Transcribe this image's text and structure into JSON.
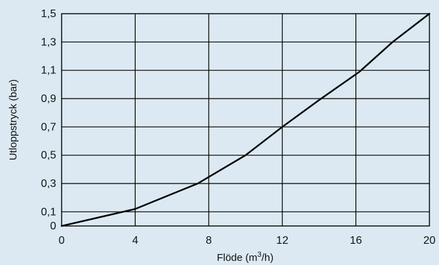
{
  "chart_data": {
    "type": "line",
    "title": "",
    "xlabel": "Flöde (m",
    "xlabel_sup": "3",
    "xlabel_suffix": "/h)",
    "ylabel": "Utloppstryck (bar)",
    "xlim": [
      0,
      20
    ],
    "ylim": [
      0,
      1.5
    ],
    "x_ticks": [
      0,
      4,
      8,
      12,
      16,
      20
    ],
    "x_tick_labels": [
      "0",
      "4",
      "8",
      "12",
      "16",
      "20"
    ],
    "y_ticks": [
      0,
      0.1,
      0.3,
      0.5,
      0.7,
      0.9,
      1.1,
      1.3,
      1.5
    ],
    "y_tick_labels": [
      "0",
      "0,1",
      "0,3",
      "0,5",
      "0,7",
      "0,9",
      "1,1",
      "1,3",
      "1,5"
    ],
    "grid": true,
    "background_color": "#dce9f2",
    "line_color": "#000000",
    "series": [
      {
        "x": [
          0,
          4,
          7.4,
          10,
          12,
          14,
          16.2,
          18,
          20
        ],
        "y": [
          0,
          0.12,
          0.3,
          0.5,
          0.7,
          0.89,
          1.09,
          1.3,
          1.5
        ]
      }
    ]
  }
}
